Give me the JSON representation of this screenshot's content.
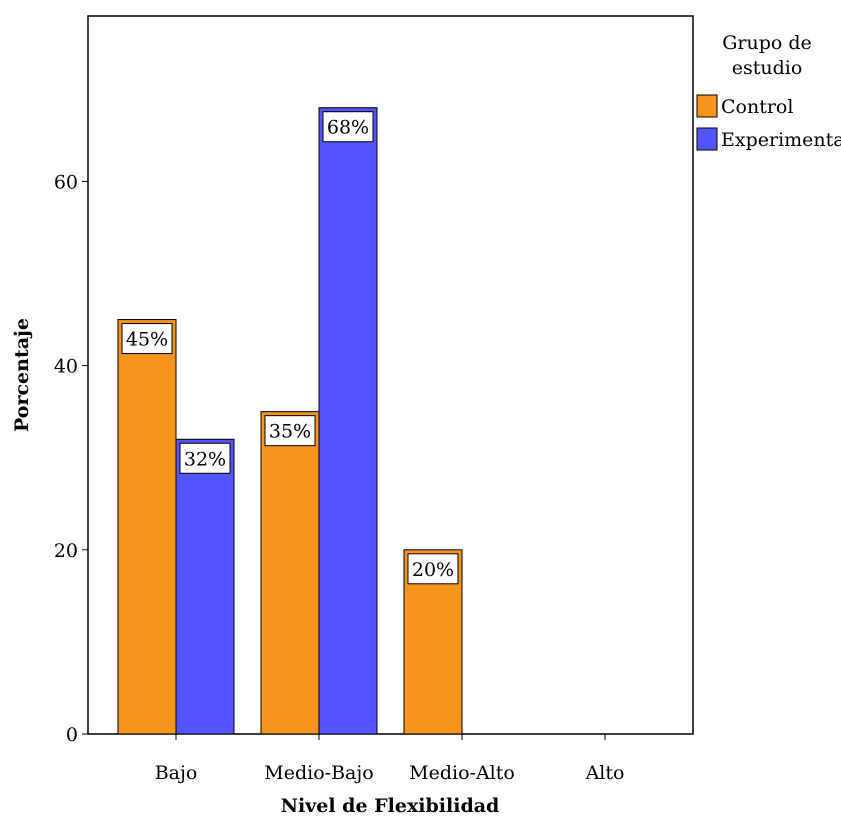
{
  "chart_data": {
    "type": "bar",
    "xlabel": "Nivel de Flexibilidad",
    "ylabel": "Porcentaje",
    "categories": [
      "Bajo",
      "Medio-Bajo",
      "Medio-Alto",
      "Alto"
    ],
    "series": [
      {
        "name": "Control",
        "values": [
          45,
          35,
          20,
          0
        ],
        "labels": [
          "45%",
          "35%",
          "20%",
          ""
        ]
      },
      {
        "name": "Experimental",
        "values": [
          32,
          68,
          0,
          0
        ],
        "labels": [
          "32%",
          "68%",
          "",
          ""
        ]
      }
    ],
    "ylim": [
      0,
      78
    ],
    "yticks": [
      0,
      20,
      40,
      60
    ],
    "grid": false,
    "legend": {
      "title_lines": [
        "Grupo de",
        "estudio"
      ],
      "position": "right"
    },
    "colors": {
      "Control": "#f7941d",
      "Experimental": "#5555ff"
    }
  }
}
